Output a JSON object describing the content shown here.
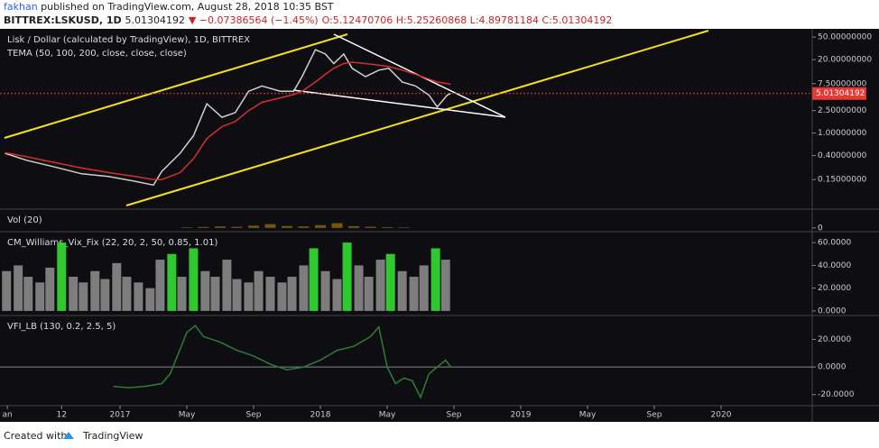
{
  "header": {
    "author": "fakhan",
    "published": "published on TradingView.com, August 28, 2018 10:35 BST",
    "symbol": "BITTREX:LSKUSD, 1D",
    "last": "5.01304192",
    "change": "▼ −0.07386564 (−1.45%)",
    "ohlc": "O:5.12470706 H:5.25260868 L:4.89781184 C:5.01304192"
  },
  "footer": {
    "created": "Created with",
    "brand": "TradingView"
  },
  "chart_data": [
    {
      "type": "line",
      "title": "Lisk / Dollar (calculated by TradingView), 1D, BITTREX",
      "subtitle": "TEMA (50, 100, 200, close, close, close)",
      "log_scale": true,
      "ylim": [
        0.045,
        70
      ],
      "yticks": [
        {
          "value": 50,
          "label": "50.00000000"
        },
        {
          "value": 20,
          "label": "20.00000000"
        },
        {
          "value": 7.5,
          "label": "7.50000000"
        },
        {
          "value": 2.5,
          "label": "2.50000000"
        },
        {
          "value": 1,
          "label": "1.00000000"
        },
        {
          "value": 0.4,
          "label": "0.40000000"
        },
        {
          "value": 0.15,
          "label": "0.15000000"
        }
      ],
      "last_price": 5.01304192,
      "last_price_color": "#e53935",
      "x": [
        -6.9,
        -5.6,
        -3.9,
        -2.3,
        -0.7,
        0.9,
        2.0,
        2.5,
        3.6,
        4.4,
        5.2,
        6.1,
        6.9,
        7.7,
        8.5,
        9.6,
        10.4,
        10.9,
        11.7,
        12.3,
        12.8,
        13.4,
        13.9,
        14.7,
        15.5,
        16.1,
        16.9,
        17.7,
        18.5,
        19.0,
        19.6,
        19.8
      ],
      "series": [
        {
          "color": "#cfcfcf",
          "values": [
            0.44,
            0.33,
            0.25,
            0.19,
            0.17,
            0.14,
            0.12,
            0.21,
            0.44,
            0.9,
            3.3,
            1.9,
            2.3,
            5.5,
            6.8,
            5.5,
            5.5,
            10,
            30,
            25,
            17,
            25,
            14,
            10,
            13,
            14,
            8,
            6.8,
            4.7,
            2.9,
            4.7,
            5.0
          ]
        },
        {
          "color": "#d32f2f",
          "values": [
            0.45,
            0.38,
            0.3,
            0.24,
            0.2,
            0.17,
            0.15,
            0.15,
            0.2,
            0.35,
            0.8,
            1.3,
            1.6,
            2.5,
            3.5,
            4.2,
            4.8,
            5.5,
            8,
            11,
            14,
            17,
            18,
            17,
            16,
            15,
            13,
            11,
            9,
            8,
            7.5,
            7.3
          ]
        }
      ]
    },
    {
      "type": "bar",
      "title": "Vol (20)",
      "ylim": [
        -20,
        100
      ],
      "yticks": [
        0
      ],
      "color": "#b8860b",
      "x": [
        4,
        5,
        6,
        7,
        8,
        9,
        10,
        11,
        12,
        13,
        14,
        15,
        16,
        17
      ],
      "values": [
        3,
        5,
        8,
        6,
        12,
        20,
        10,
        8,
        15,
        25,
        9,
        6,
        4,
        3
      ]
    },
    {
      "type": "bar",
      "title": "CM_Williams_Vix_Fix (22, 20, 2, 50, 0.85, 1.01)",
      "ylim": [
        -4,
        69.6
      ],
      "yticks": [
        {
          "value": 60,
          "label": "60.0000"
        },
        {
          "value": 40,
          "label": "40.0000"
        },
        {
          "value": 20,
          "label": "20.0000"
        },
        {
          "value": 0,
          "label": "0.0000"
        }
      ],
      "x": [
        -6.8,
        -6.1,
        -5.5,
        -4.8,
        -4.2,
        -3.5,
        -2.8,
        -2.2,
        -1.5,
        -0.9,
        -0.2,
        0.4,
        1.1,
        1.8,
        2.4,
        3.1,
        3.7,
        4.4,
        5.1,
        5.7,
        6.4,
        7.0,
        7.7,
        8.3,
        9.0,
        9.7,
        10.3,
        11.0,
        11.6,
        12.3,
        13.0,
        13.6,
        14.3,
        14.9,
        15.6,
        16.2,
        16.9,
        17.6,
        18.2,
        18.9,
        19.5
      ],
      "values": [
        35,
        40,
        30,
        25,
        38,
        60,
        30,
        25,
        35,
        28,
        42,
        30,
        25,
        20,
        45,
        50,
        30,
        55,
        35,
        30,
        45,
        28,
        25,
        35,
        30,
        25,
        30,
        40,
        55,
        35,
        28,
        60,
        40,
        30,
        45,
        50,
        35,
        30,
        40,
        55,
        45
      ],
      "colors": [
        "#8a8a8a",
        "#8a8a8a",
        "#8a8a8a",
        "#8a8a8a",
        "#8a8a8a",
        "#33dd33",
        "#8a8a8a",
        "#8a8a8a",
        "#8a8a8a",
        "#8a8a8a",
        "#8a8a8a",
        "#8a8a8a",
        "#8a8a8a",
        "#8a8a8a",
        "#8a8a8a",
        "#33dd33",
        "#8a8a8a",
        "#33dd33",
        "#8a8a8a",
        "#8a8a8a",
        "#8a8a8a",
        "#8a8a8a",
        "#8a8a8a",
        "#8a8a8a",
        "#8a8a8a",
        "#8a8a8a",
        "#8a8a8a",
        "#8a8a8a",
        "#33dd33",
        "#8a8a8a",
        "#8a8a8a",
        "#33dd33",
        "#8a8a8a",
        "#8a8a8a",
        "#8a8a8a",
        "#33dd33",
        "#8a8a8a",
        "#8a8a8a",
        "#8a8a8a",
        "#33dd33",
        "#8a8a8a"
      ]
    },
    {
      "type": "line",
      "title": "VFI_LB (130, 0.2, 2.5, 5)",
      "ylim": [
        -28,
        37.3
      ],
      "yticks": [
        {
          "value": 20,
          "label": "20.0000"
        },
        {
          "value": 0,
          "label": "0.0000"
        },
        {
          "value": -20,
          "label": "-20.0000"
        }
      ],
      "zero_line": true,
      "xlim": [
        -7.19,
        41.46
      ],
      "xticks": [
        {
          "value": -6.75,
          "label": "an"
        },
        {
          "value": -3.5,
          "label": "12"
        },
        {
          "value": 0,
          "label": "2017"
        },
        {
          "value": 4,
          "label": "May"
        },
        {
          "value": 8,
          "label": "Sep"
        },
        {
          "value": 12,
          "label": "2018"
        },
        {
          "value": 16,
          "label": "May"
        },
        {
          "value": 20,
          "label": "Sep"
        },
        {
          "value": 24,
          "label": "2019"
        },
        {
          "value": 28,
          "label": "May"
        },
        {
          "value": 32,
          "label": "Sep"
        },
        {
          "value": 36,
          "label": "2020"
        }
      ],
      "x": [
        -0.4,
        0.5,
        1.5,
        2.5,
        3.0,
        3.5,
        4.0,
        4.5,
        5.0,
        6.0,
        7.0,
        8.0,
        9.0,
        10.0,
        11.0,
        12.0,
        13.0,
        14.0,
        15.0,
        15.5,
        16.0,
        16.5,
        17.0,
        17.5,
        18.0,
        18.5,
        19.0,
        19.5,
        19.8
      ],
      "series": [
        {
          "color": "#2e7d32",
          "values": [
            -14,
            -15,
            -14,
            -12,
            -5,
            10,
            25,
            30,
            22,
            18,
            12,
            8,
            2,
            -2,
            0,
            5,
            12,
            15,
            22,
            29,
            0,
            -12,
            -8,
            -10,
            -22,
            -5,
            0,
            5,
            0
          ]
        }
      ]
    }
  ]
}
